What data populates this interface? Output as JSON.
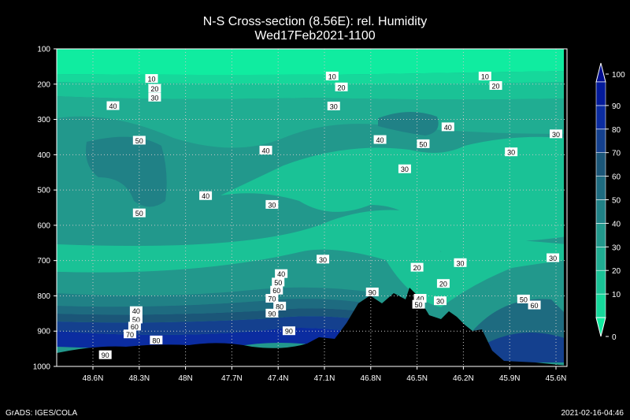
{
  "title": "N-S Cross-section (8.56E): rel. Humidity",
  "subtitle": "Wed17Feb2021-1100",
  "footer_left": "GrADS: IGES/COLA",
  "footer_right": "2021-02-16-04:46",
  "chart_data": {
    "type": "heatmap",
    "x_ticks": [
      "48.6N",
      "48.3N",
      "48N",
      "47.7N",
      "47.4N",
      "47.1N",
      "46.8N",
      "46.5N",
      "46.2N",
      "45.9N",
      "45.6N"
    ],
    "y_ticks": [
      "100",
      "200",
      "300",
      "400",
      "500",
      "600",
      "700",
      "800",
      "900",
      "1000"
    ],
    "ylim": [
      1000,
      100
    ],
    "grid": true,
    "colorbar": {
      "ticks": [
        "0",
        "10",
        "20",
        "30",
        "40",
        "50",
        "60",
        "70",
        "80",
        "90",
        "100"
      ],
      "colors": [
        "#10eca0",
        "#16d89b",
        "#1ac296",
        "#20ad92",
        "#22988c",
        "#208186",
        "#1e6b80",
        "#1b5678",
        "#14408e",
        "#0b2ca0",
        "#031a9a",
        "#000d90"
      ]
    },
    "contour_labels": [
      {
        "text": "10",
        "lat": 48.22,
        "p": 185
      },
      {
        "text": "20",
        "lat": 48.2,
        "p": 213
      },
      {
        "text": "30",
        "lat": 48.2,
        "p": 238
      },
      {
        "text": "40",
        "lat": 48.47,
        "p": 262
      },
      {
        "text": "50",
        "lat": 48.3,
        "p": 360
      },
      {
        "text": "40",
        "lat": 47.48,
        "p": 388
      },
      {
        "text": "40",
        "lat": 47.87,
        "p": 517
      },
      {
        "text": "50",
        "lat": 48.3,
        "p": 566
      },
      {
        "text": "30",
        "lat": 47.44,
        "p": 542
      },
      {
        "text": "10",
        "lat": 47.05,
        "p": 178
      },
      {
        "text": "20",
        "lat": 46.99,
        "p": 209
      },
      {
        "text": "30",
        "lat": 47.04,
        "p": 263
      },
      {
        "text": "40",
        "lat": 46.74,
        "p": 358
      },
      {
        "text": "30",
        "lat": 46.58,
        "p": 441
      },
      {
        "text": "50",
        "lat": 46.46,
        "p": 370
      },
      {
        "text": "40",
        "lat": 46.3,
        "p": 322
      },
      {
        "text": "10",
        "lat": 46.06,
        "p": 178
      },
      {
        "text": "20",
        "lat": 45.99,
        "p": 205
      },
      {
        "text": "30",
        "lat": 45.89,
        "p": 393
      },
      {
        "text": "30",
        "lat": 45.6,
        "p": 342
      },
      {
        "text": "30",
        "lat": 47.11,
        "p": 697
      },
      {
        "text": "30",
        "lat": 46.22,
        "p": 707
      },
      {
        "text": "30",
        "lat": 45.62,
        "p": 693
      },
      {
        "text": "20",
        "lat": 46.5,
        "p": 720
      },
      {
        "text": "20",
        "lat": 46.33,
        "p": 766
      },
      {
        "text": "40",
        "lat": 47.38,
        "p": 738
      },
      {
        "text": "50",
        "lat": 47.4,
        "p": 762
      },
      {
        "text": "60",
        "lat": 47.41,
        "p": 785
      },
      {
        "text": "70",
        "lat": 47.44,
        "p": 808
      },
      {
        "text": "80",
        "lat": 47.39,
        "p": 830
      },
      {
        "text": "90",
        "lat": 47.44,
        "p": 850
      },
      {
        "text": "90",
        "lat": 46.79,
        "p": 790
      },
      {
        "text": "90",
        "lat": 47.33,
        "p": 900
      },
      {
        "text": "40",
        "lat": 46.48,
        "p": 808
      },
      {
        "text": "50",
        "lat": 46.49,
        "p": 825
      },
      {
        "text": "30",
        "lat": 46.35,
        "p": 815
      },
      {
        "text": "50",
        "lat": 45.81,
        "p": 810
      },
      {
        "text": "60",
        "lat": 45.74,
        "p": 827
      },
      {
        "text": "40",
        "lat": 48.32,
        "p": 843
      },
      {
        "text": "50",
        "lat": 48.32,
        "p": 867
      },
      {
        "text": "60",
        "lat": 48.33,
        "p": 887
      },
      {
        "text": "70",
        "lat": 48.36,
        "p": 909
      },
      {
        "text": "80",
        "lat": 48.19,
        "p": 926
      },
      {
        "text": "90",
        "lat": 48.52,
        "p": 968
      }
    ]
  }
}
